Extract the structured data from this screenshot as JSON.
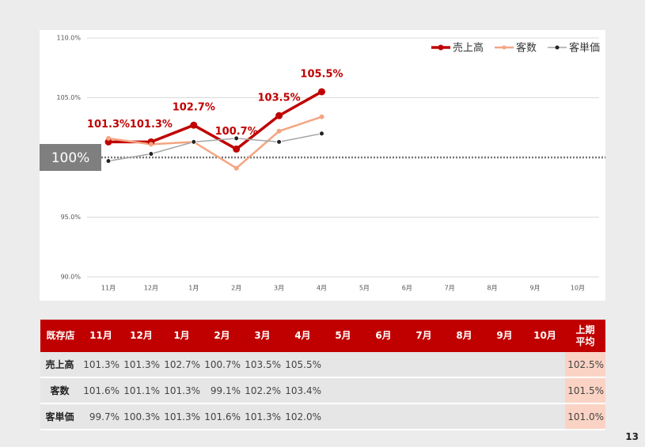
{
  "chart_data": {
    "type": "line",
    "categories": [
      "11月",
      "12月",
      "1月",
      "2月",
      "3月",
      "4月",
      "5月",
      "6月",
      "7月",
      "8月",
      "9月",
      "10月"
    ],
    "ylim": [
      90,
      110
    ],
    "yticks": [
      {
        "value": 90,
        "label": "90.0%"
      },
      {
        "value": 95,
        "label": "95.0%"
      },
      {
        "value": 105,
        "label": "105.0%"
      },
      {
        "value": 110,
        "label": "110.0%"
      }
    ],
    "grid": true,
    "legend": "top-right",
    "reference_line": {
      "value": 100,
      "label": "100%"
    },
    "series": [
      {
        "name": "売上高",
        "color": "#c00000",
        "values": [
          101.3,
          101.3,
          102.7,
          100.7,
          103.5,
          105.5,
          null,
          null,
          null,
          null,
          null,
          null
        ],
        "value_labels": [
          "101.3%",
          "101.3%",
          "102.7%",
          "100.7%",
          "103.5%",
          "105.5%",
          null,
          null,
          null,
          null,
          null,
          null
        ]
      },
      {
        "name": "客数",
        "color": "#f4a582",
        "values": [
          101.6,
          101.1,
          101.3,
          99.1,
          102.2,
          103.4,
          null,
          null,
          null,
          null,
          null,
          null
        ]
      },
      {
        "name": "客単価",
        "color": "#a6a6a6",
        "values": [
          99.7,
          100.3,
          101.3,
          101.6,
          101.3,
          102.0,
          null,
          null,
          null,
          null,
          null,
          null
        ]
      }
    ]
  },
  "table": {
    "header": [
      "既存店",
      "11月",
      "12月",
      "1月",
      "2月",
      "3月",
      "4月",
      "5月",
      "6月",
      "7月",
      "8月",
      "9月",
      "10月",
      "上期\n平均"
    ],
    "rows": [
      {
        "label": "売上高",
        "values": [
          "101.3%",
          "101.3%",
          "102.7%",
          "100.7%",
          "103.5%",
          "105.5%"
        ],
        "average": "102.5%"
      },
      {
        "label": "客数",
        "values": [
          "101.6%",
          "101.1%",
          "101.3%",
          "99.1%",
          "102.2%",
          "103.4%"
        ],
        "average": "101.5%"
      },
      {
        "label": "客単価",
        "values": [
          "99.7%",
          "100.3%",
          "101.3%",
          "101.6%",
          "101.3%",
          "102.0%"
        ],
        "average": "101.0%"
      }
    ]
  },
  "page_number": "13"
}
